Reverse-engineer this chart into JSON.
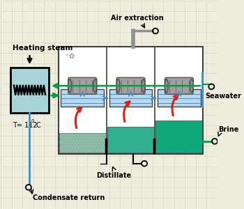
{
  "bg_color": "#eeeedf",
  "grid_color": "#d8d8c8",
  "labels": {
    "heating_steam": "Heating steam",
    "air_extraction": "Air extraction",
    "seawater": "Seawater",
    "condensate": "Condensate return",
    "distillate": "Distillate",
    "brine": "Brine"
  },
  "colors": {
    "boiler_fill": "#a8d4d8",
    "stage_outline": "#404040",
    "seawater_fill": "#b8d8f0",
    "brine1_fill": "#90bca8",
    "brine2_fill": "#30b090",
    "brine3_fill": "#10a878",
    "green_flow": "#00a040",
    "blue_flow": "#4090d0",
    "red_arrow": "#dd2010",
    "black": "#000000",
    "white": "#ffffff",
    "pipe_gray": "#909090",
    "tube_gray": "#a0a0a0",
    "tube_dark": "#505050"
  }
}
